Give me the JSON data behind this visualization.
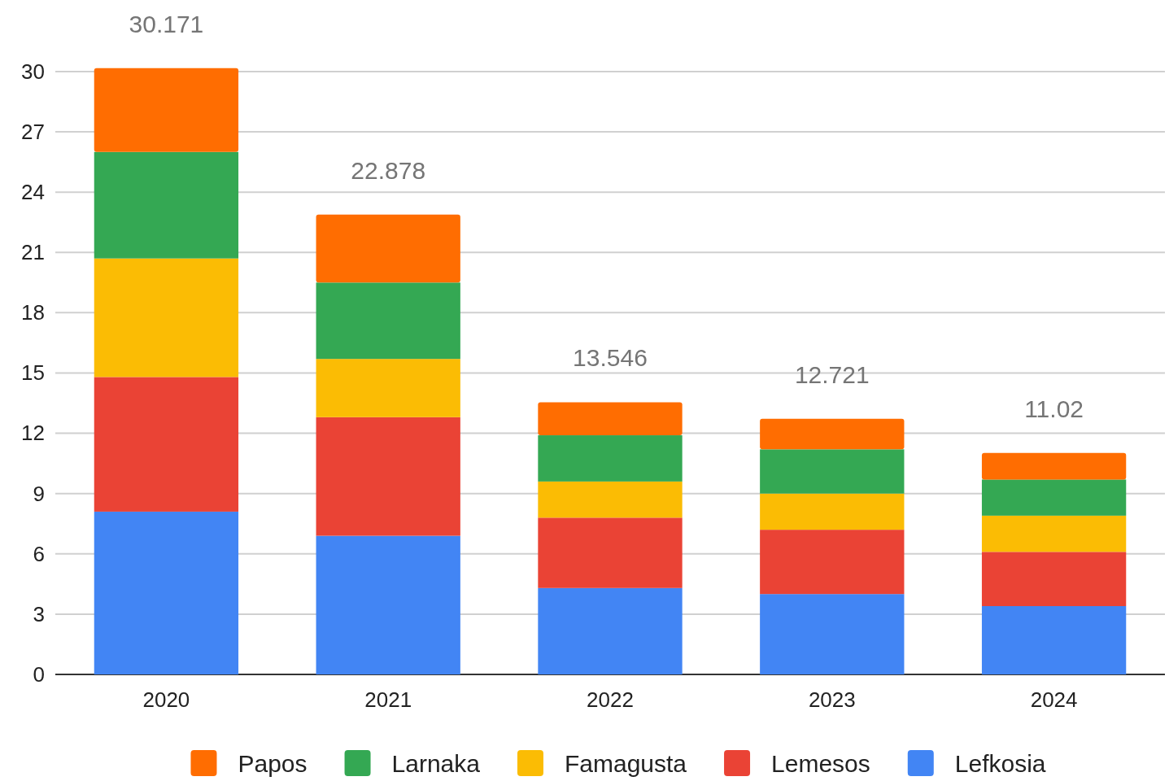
{
  "chart_data": {
    "type": "bar",
    "stacked": true,
    "categories": [
      "2020",
      "2021",
      "2022",
      "2023",
      "2024"
    ],
    "series": [
      {
        "name": "Lefkosia",
        "color": "#4285f4",
        "values": [
          8.1,
          6.9,
          4.3,
          4.0,
          3.4
        ]
      },
      {
        "name": "Lemesos",
        "color": "#ea4335",
        "values": [
          6.7,
          5.9,
          3.5,
          3.2,
          2.7
        ]
      },
      {
        "name": "Famagusta",
        "color": "#fbbc04",
        "values": [
          5.9,
          2.9,
          1.8,
          1.8,
          1.8
        ]
      },
      {
        "name": "Larnaka",
        "color": "#34a853",
        "values": [
          5.3,
          3.8,
          2.3,
          2.2,
          1.8
        ]
      },
      {
        "name": "Papos",
        "color": "#ff6d01",
        "values": [
          4.171,
          3.378,
          1.646,
          1.521,
          1.32
        ]
      }
    ],
    "totals": [
      "30.171",
      "22.878",
      "13.546",
      "12.721",
      "11.02"
    ],
    "ylim": [
      0,
      30.2
    ],
    "yticks": [
      0,
      3,
      6,
      9,
      12,
      15,
      18,
      21,
      24,
      27,
      30
    ],
    "grid": "y",
    "legend": "bottom"
  }
}
